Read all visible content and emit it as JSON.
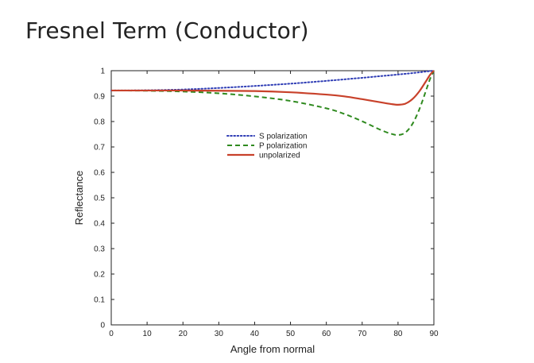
{
  "slide": {
    "title": "Fresnel Term (Conductor)"
  },
  "chart_data": {
    "type": "line",
    "title": "",
    "xlabel": "Angle from normal",
    "ylabel": "Reflectance",
    "xlim": [
      0,
      90
    ],
    "ylim": [
      0,
      1
    ],
    "xticks": [
      0,
      10,
      20,
      30,
      40,
      50,
      60,
      70,
      80,
      90
    ],
    "yticks": [
      0,
      0.1,
      0.2,
      0.3,
      0.4,
      0.5,
      0.6,
      0.7,
      0.8,
      0.9,
      1
    ],
    "ytick_labels": [
      "0",
      "0.1",
      "0.2",
      "0.3",
      "0.4",
      "0.5",
      "0.6",
      "0.7",
      "0.8",
      "0.9",
      "1"
    ],
    "grid": false,
    "legend_position": "upper-center",
    "series": [
      {
        "name": "S polarization",
        "color": "#2f3db5",
        "style": "dotted",
        "x": [
          0,
          10,
          20,
          30,
          40,
          50,
          60,
          70,
          80,
          85,
          88,
          90
        ],
        "y": [
          0.922,
          0.923,
          0.926,
          0.932,
          0.94,
          0.949,
          0.96,
          0.972,
          0.985,
          0.992,
          0.997,
          1.0
        ]
      },
      {
        "name": "P polarization",
        "color": "#2f8a1f",
        "style": "dashed",
        "x": [
          0,
          10,
          20,
          30,
          40,
          50,
          60,
          65,
          70,
          75,
          78,
          80,
          82,
          84,
          86,
          88,
          89,
          90
        ],
        "y": [
          0.922,
          0.921,
          0.918,
          0.911,
          0.899,
          0.881,
          0.852,
          0.83,
          0.801,
          0.768,
          0.752,
          0.747,
          0.756,
          0.79,
          0.85,
          0.93,
          0.97,
          1.0
        ]
      },
      {
        "name": "unpolarized",
        "color": "#c8412a",
        "style": "solid",
        "x": [
          0,
          10,
          20,
          30,
          40,
          50,
          60,
          65,
          70,
          75,
          78,
          80,
          82,
          84,
          86,
          88,
          89,
          90
        ],
        "y": [
          0.922,
          0.922,
          0.922,
          0.921,
          0.92,
          0.915,
          0.906,
          0.899,
          0.888,
          0.876,
          0.869,
          0.866,
          0.87,
          0.888,
          0.92,
          0.963,
          0.985,
          1.0
        ]
      }
    ]
  }
}
